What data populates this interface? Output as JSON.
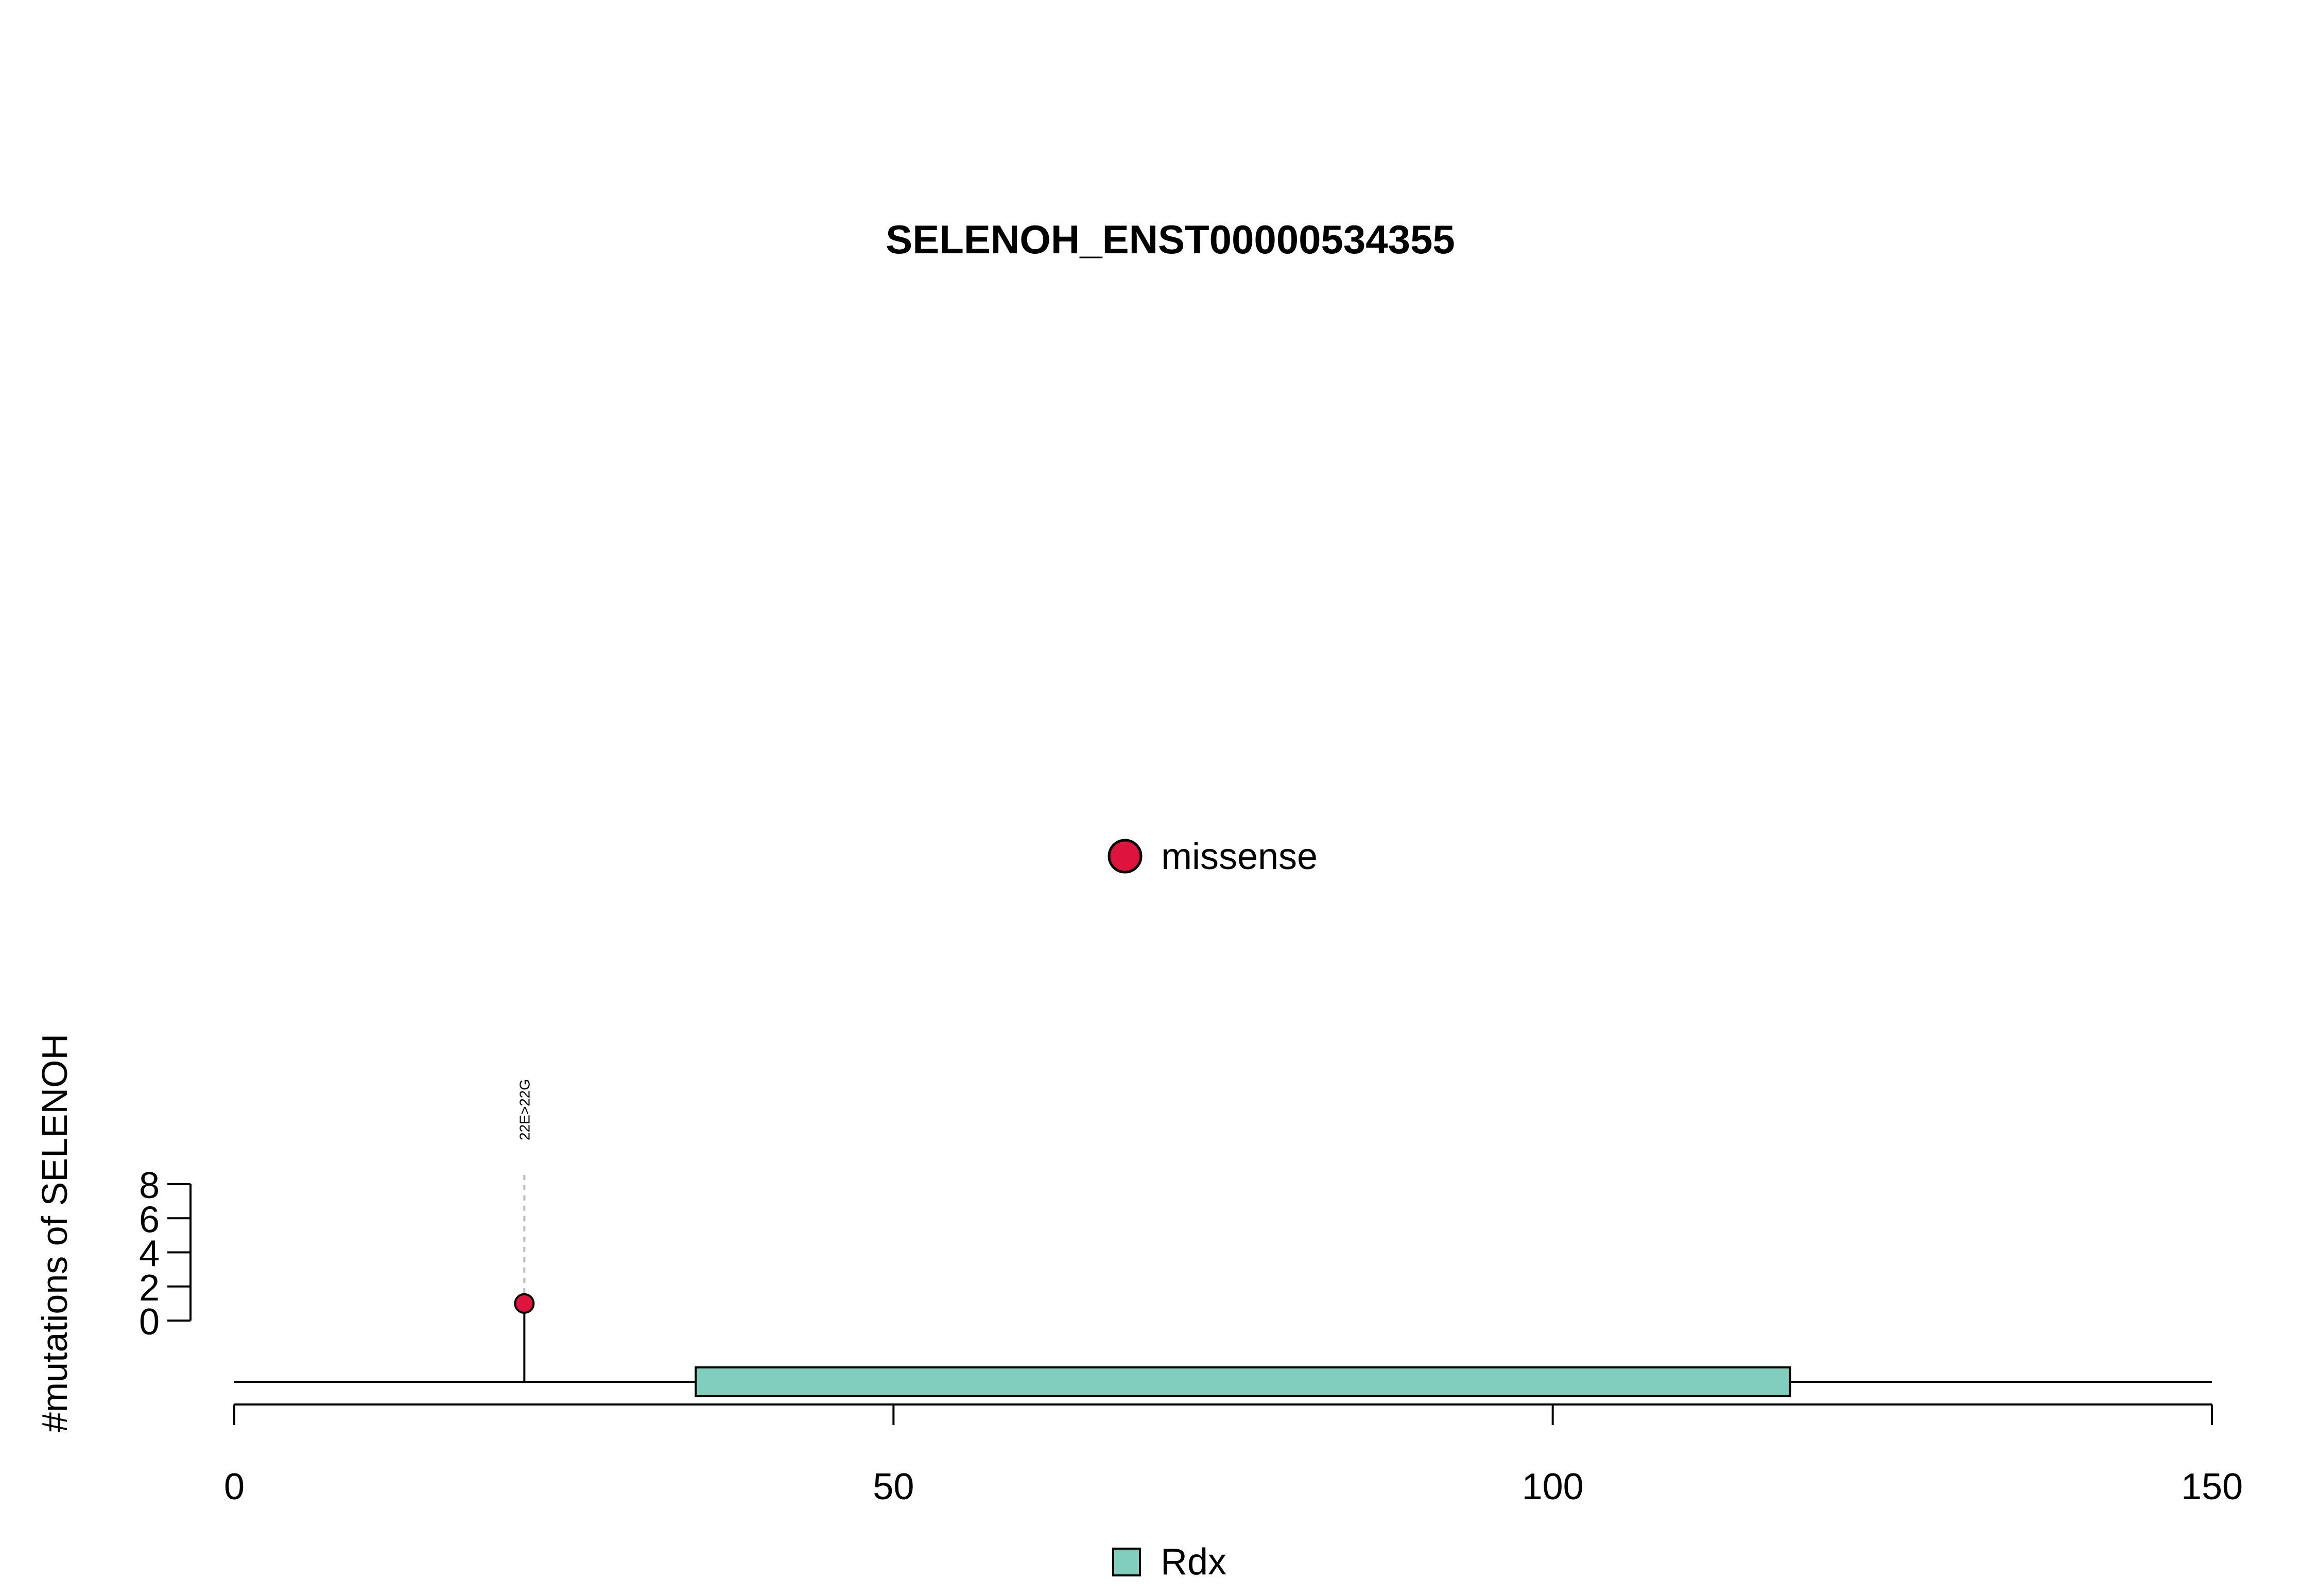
{
  "chart_data": {
    "type": "lollipop",
    "title": "SELENOH_ENST00000534355",
    "ylabel": "#mutations of SELENOH",
    "xlim": [
      0,
      150
    ],
    "x_ticks": [
      0,
      50,
      100,
      150
    ],
    "x_tick_labels": [
      "0",
      "50",
      "100",
      "150"
    ],
    "ylim": [
      0,
      8
    ],
    "y_ticks": [
      0,
      2,
      4,
      6,
      8
    ],
    "y_tick_labels": [
      "0",
      "2",
      "4",
      "6",
      "8"
    ],
    "mutations": [
      {
        "position": 22,
        "count": 1,
        "label": "22E>22G",
        "type": "missense"
      }
    ],
    "domains": [
      {
        "name": "Rdx",
        "start": 35,
        "end": 118
      }
    ],
    "legend_mutation_types": [
      {
        "label": "missense",
        "color": "#DC143C"
      }
    ],
    "legend_domains": [
      {
        "label": "Rdx",
        "color": "#7FCDBB"
      }
    ],
    "backbone_start": 0,
    "backbone_end": 150
  }
}
